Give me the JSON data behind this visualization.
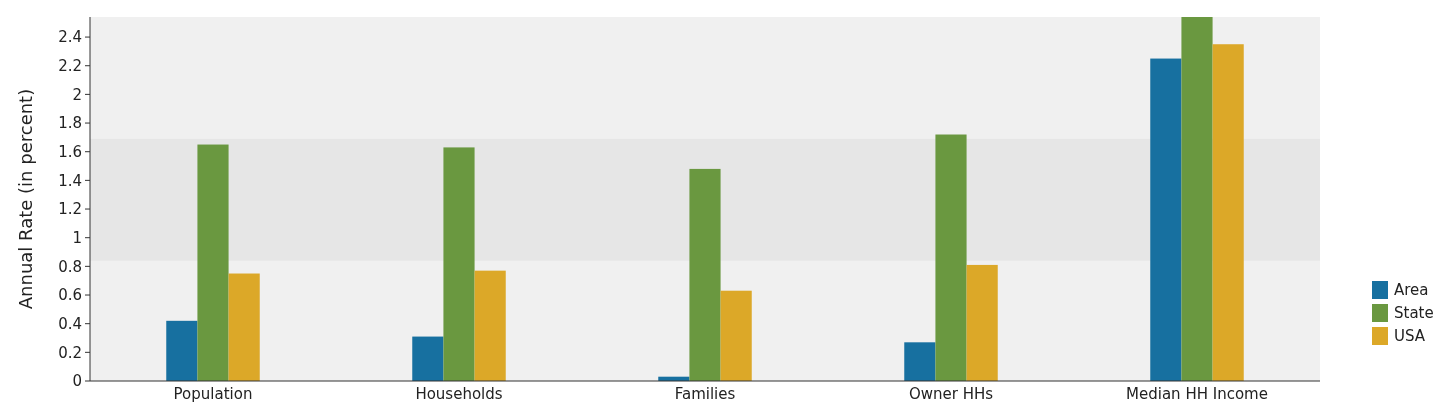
{
  "chart_data": {
    "type": "bar",
    "ylabel": "Annual Rate (in percent)",
    "categories": [
      "Population",
      "Households",
      "Families",
      "Owner HHs",
      "Median HH Income"
    ],
    "series": [
      {
        "name": "Area",
        "color": "#1770a0",
        "values": [
          0.42,
          0.31,
          0.03,
          0.27,
          2.25
        ]
      },
      {
        "name": "State",
        "color": "#6a9840",
        "values": [
          1.65,
          1.63,
          1.48,
          1.72,
          2.54
        ]
      },
      {
        "name": "USA",
        "color": "#dca828",
        "values": [
          0.75,
          0.77,
          0.63,
          0.81,
          2.35
        ]
      }
    ],
    "ylim": [
      0,
      2.54
    ],
    "yticks": [
      0,
      0.2,
      0.4,
      0.6,
      0.8,
      1,
      1.2,
      1.4,
      1.6,
      1.8,
      2,
      2.2,
      2.4
    ],
    "bands": [
      {
        "axis": "y",
        "from": 0.84,
        "to": 1.69,
        "color": "#e6e6e6"
      }
    ],
    "legend": "right"
  }
}
